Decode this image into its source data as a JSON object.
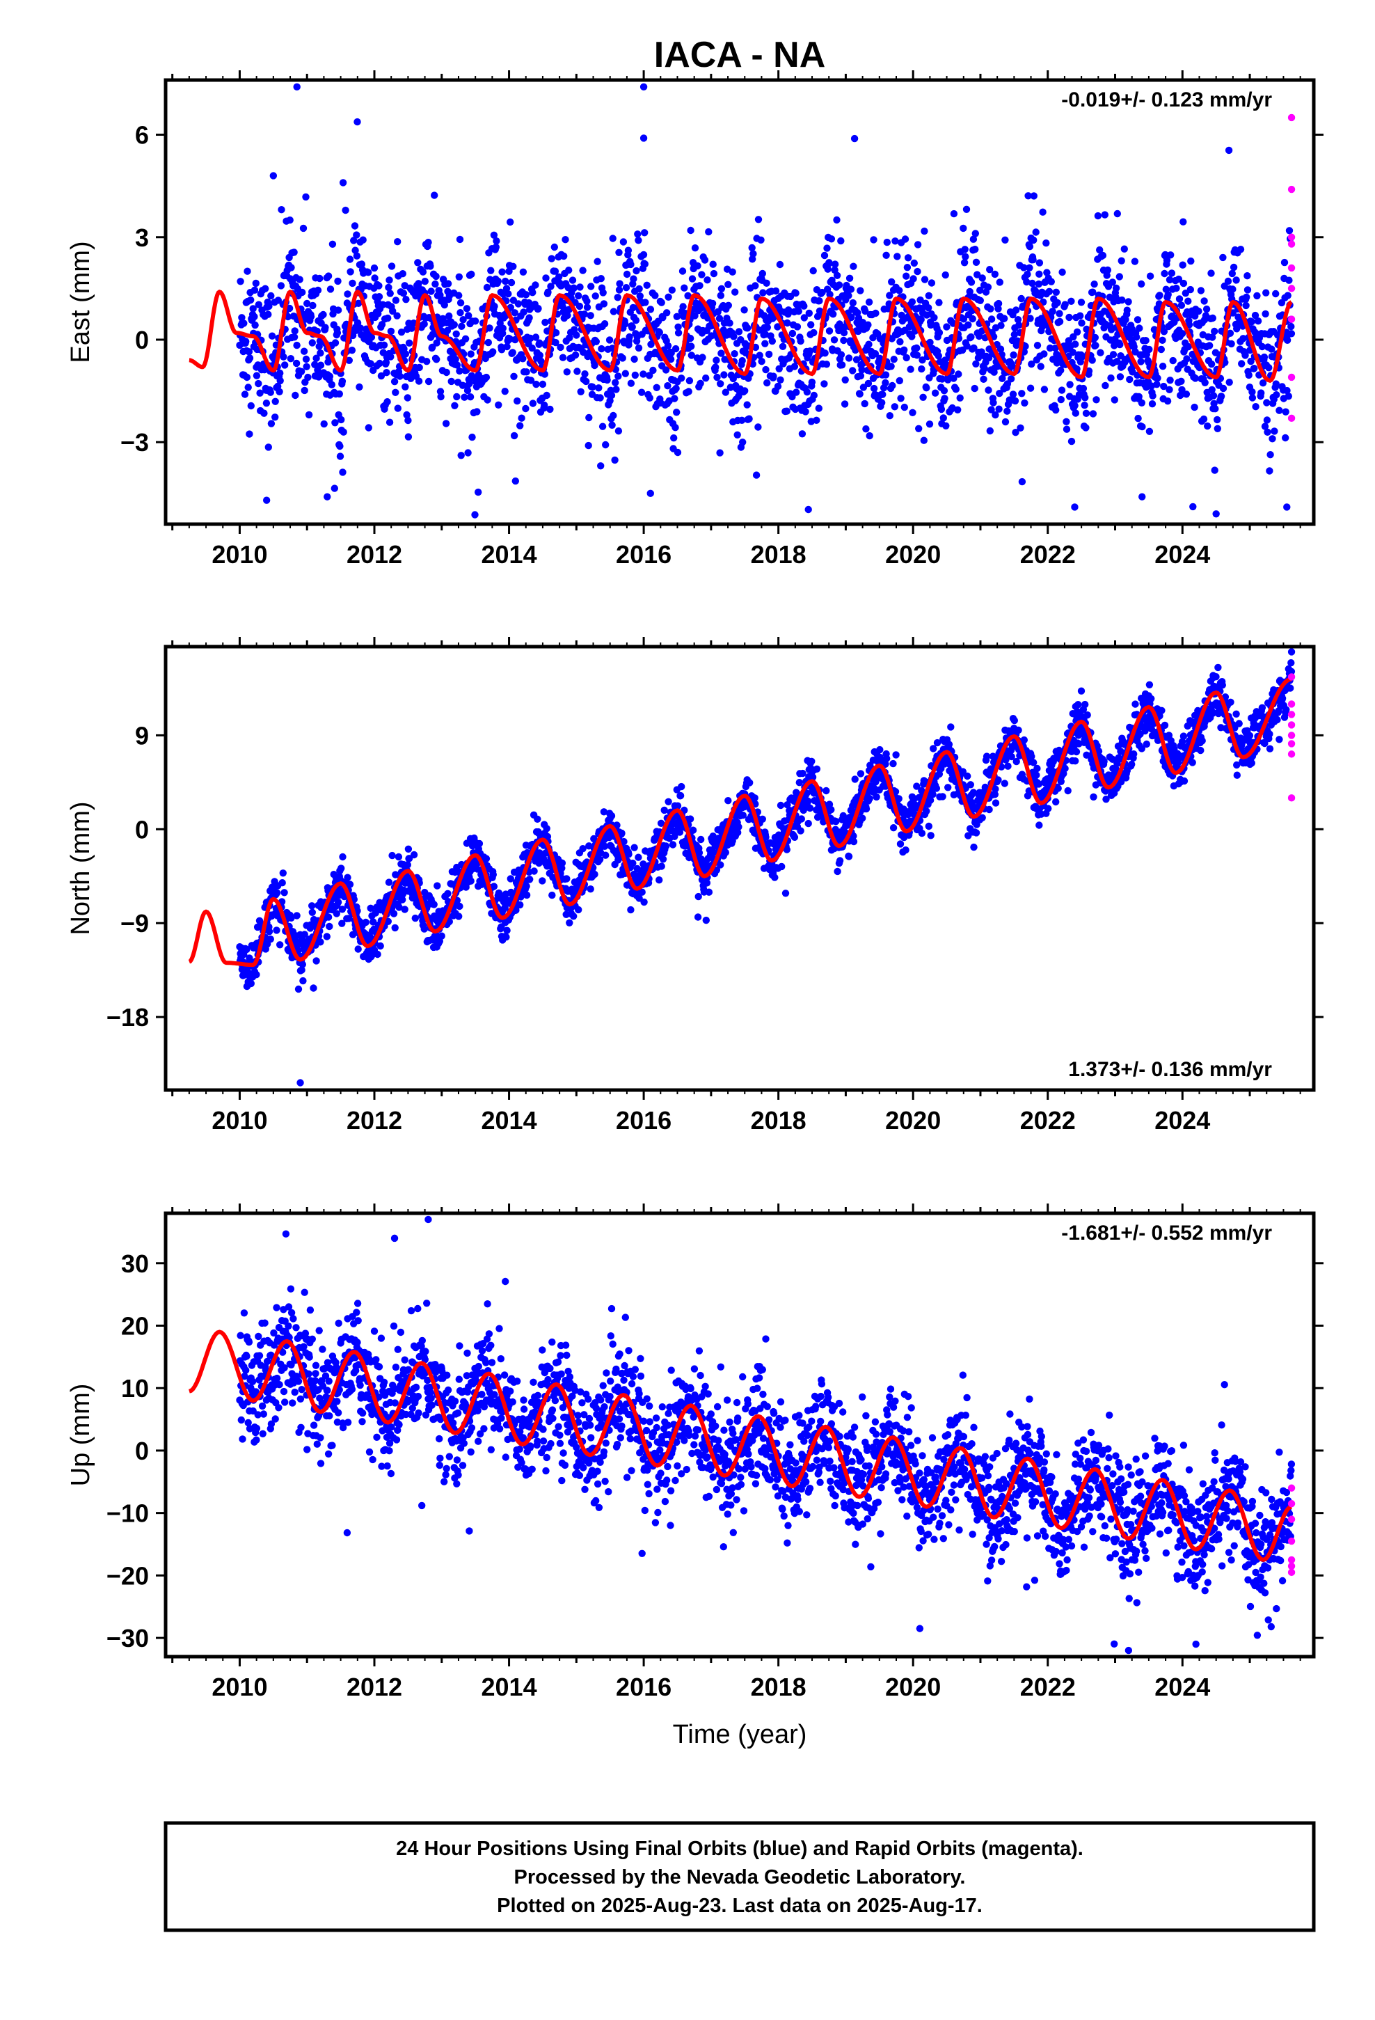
{
  "title": "IACA - NA",
  "xlabel": "Time (year)",
  "colors": {
    "final": "#0000ff",
    "rapid": "#ff00ff",
    "model": "#ff0000",
    "frame": "#000000"
  },
  "footer": {
    "line1": "24 Hour Positions Using Final Orbits (blue) and Rapid Orbits (magenta).",
    "line2": "Processed by the Nevada Geodetic Laboratory.",
    "line3": "Plotted on 2025-Aug-23. Last data on 2025-Aug-17."
  },
  "chart_data": [
    {
      "type": "scatter",
      "component": "east",
      "ylabel": "East (mm)",
      "rate_label": "-0.019+/- 0.123 mm/yr",
      "rate_position": "top-right",
      "xlim": [
        2008.9,
        2025.95
      ],
      "ylim": [
        -5.4,
        7.6
      ],
      "xticks": [
        2010,
        2012,
        2014,
        2016,
        2018,
        2020,
        2022,
        2024
      ],
      "yticks": [
        -3,
        0,
        3,
        6
      ],
      "data_start": 2010.0,
      "data_end": 2025.62,
      "model": {
        "name": "seasonal + linear fit",
        "rate": -0.019,
        "annual_amplitude": 0.9,
        "semiannual_amplitude": 0.45,
        "model_points": [
          [
            2009.25,
            -0.6
          ],
          [
            2009.45,
            -0.8
          ],
          [
            2009.7,
            1.4
          ],
          [
            2009.95,
            0.2
          ],
          [
            2010.2,
            0.1
          ],
          [
            2010.5,
            -0.9
          ],
          [
            2010.75,
            1.4
          ],
          [
            2011.0,
            0.2
          ],
          [
            2011.2,
            0.1
          ],
          [
            2011.5,
            -0.9
          ],
          [
            2011.75,
            1.4
          ],
          [
            2012.0,
            0.2
          ],
          [
            2012.2,
            0.1
          ],
          [
            2012.5,
            -0.9
          ],
          [
            2012.75,
            1.3
          ],
          [
            2013.0,
            0.1
          ],
          [
            2013.5,
            -0.9
          ],
          [
            2013.75,
            1.3
          ],
          [
            2014.5,
            -0.9
          ],
          [
            2014.75,
            1.3
          ],
          [
            2015.5,
            -0.9
          ],
          [
            2015.75,
            1.3
          ],
          [
            2016.5,
            -0.9
          ],
          [
            2016.75,
            1.3
          ],
          [
            2017.5,
            -1.0
          ],
          [
            2017.75,
            1.2
          ],
          [
            2018.5,
            -1.0
          ],
          [
            2018.75,
            1.2
          ],
          [
            2019.5,
            -1.0
          ],
          [
            2019.75,
            1.2
          ],
          [
            2020.5,
            -1.0
          ],
          [
            2020.75,
            1.2
          ],
          [
            2021.5,
            -1.0
          ],
          [
            2021.75,
            1.2
          ],
          [
            2022.5,
            -1.1
          ],
          [
            2022.75,
            1.2
          ],
          [
            2023.5,
            -1.1
          ],
          [
            2023.75,
            1.1
          ],
          [
            2024.5,
            -1.1
          ],
          [
            2024.75,
            1.1
          ],
          [
            2025.3,
            -1.2
          ],
          [
            2025.62,
            1.1
          ]
        ]
      },
      "rapid_points": [
        [
          2025.62,
          6.5
        ],
        [
          2025.62,
          4.4
        ],
        [
          2025.62,
          3.0
        ],
        [
          2025.62,
          2.8
        ],
        [
          2025.62,
          2.1
        ],
        [
          2025.62,
          1.5
        ],
        [
          2025.62,
          0.6
        ],
        [
          2025.62,
          -1.1
        ],
        [
          2025.62,
          -2.3
        ]
      ],
      "outliers": [
        [
          2010.85,
          7.4
        ],
        [
          2016.0,
          7.4
        ],
        [
          2016.0,
          5.9
        ],
        [
          2010.5,
          4.8
        ],
        [
          2010.4,
          -4.7
        ],
        [
          2011.3,
          -4.6
        ],
        [
          2016.1,
          -4.5
        ],
        [
          2023.4,
          -4.6
        ],
        [
          2024.5,
          -5.1
        ],
        [
          2022.4,
          -4.9
        ],
        [
          2025.55,
          -4.9
        ]
      ],
      "noise_sd": 1.1
    },
    {
      "type": "scatter",
      "component": "north",
      "ylabel": "North (mm)",
      "rate_label": "1.373+/- 0.136 mm/yr",
      "rate_position": "bottom-right",
      "xlim": [
        2008.9,
        2025.95
      ],
      "ylim": [
        -25,
        17.5
      ],
      "xticks": [
        2010,
        2012,
        2014,
        2016,
        2018,
        2020,
        2022,
        2024
      ],
      "yticks": [
        -18,
        -9,
        0,
        9
      ],
      "data_start": 2010.0,
      "data_end": 2025.62,
      "model": {
        "name": "seasonal + linear fit",
        "rate": 1.373,
        "annual_amplitude": 3.6,
        "semiannual_amplitude": 0.8,
        "model_points": [
          [
            2009.25,
            -12.7
          ],
          [
            2009.5,
            -7.9
          ],
          [
            2009.8,
            -12.8
          ],
          [
            2010.2,
            -13.0
          ],
          [
            2010.5,
            -6.7
          ],
          [
            2010.9,
            -12.5
          ],
          [
            2011.5,
            -5.2
          ],
          [
            2011.9,
            -11.2
          ],
          [
            2012.5,
            -4.0
          ],
          [
            2012.9,
            -9.8
          ],
          [
            2013.5,
            -2.5
          ],
          [
            2013.9,
            -8.5
          ],
          [
            2014.5,
            -1.0
          ],
          [
            2014.9,
            -7.2
          ],
          [
            2015.5,
            0.3
          ],
          [
            2015.9,
            -5.7
          ],
          [
            2016.5,
            1.8
          ],
          [
            2016.9,
            -4.5
          ],
          [
            2017.5,
            3.2
          ],
          [
            2017.9,
            -3.0
          ],
          [
            2018.5,
            4.6
          ],
          [
            2018.9,
            -1.6
          ],
          [
            2019.5,
            6.1
          ],
          [
            2019.9,
            -0.2
          ],
          [
            2020.5,
            7.4
          ],
          [
            2020.9,
            1.2
          ],
          [
            2021.5,
            8.9
          ],
          [
            2021.9,
            2.5
          ],
          [
            2022.5,
            10.3
          ],
          [
            2022.9,
            4.0
          ],
          [
            2023.5,
            11.7
          ],
          [
            2023.9,
            5.4
          ],
          [
            2024.5,
            13.1
          ],
          [
            2024.9,
            6.9
          ],
          [
            2025.62,
            14.4
          ]
        ]
      },
      "rapid_points": [
        [
          2025.62,
          14.6
        ],
        [
          2025.62,
          12.0
        ],
        [
          2025.62,
          11.0
        ],
        [
          2025.62,
          10.0
        ],
        [
          2025.62,
          9.0
        ],
        [
          2025.62,
          8.2
        ],
        [
          2025.62,
          7.2
        ],
        [
          2025.62,
          3.0
        ]
      ],
      "outliers": [
        [
          2010.9,
          -24.3
        ],
        [
          2025.62,
          17.0
        ]
      ],
      "noise_sd": 1.2
    },
    {
      "type": "scatter",
      "component": "up",
      "ylabel": "Up (mm)",
      "rate_label": "-1.681+/- 0.552 mm/yr",
      "rate_position": "top-right",
      "xlim": [
        2008.9,
        2025.95
      ],
      "ylim": [
        -33,
        38
      ],
      "xticks": [
        2010,
        2012,
        2014,
        2016,
        2018,
        2020,
        2022,
        2024
      ],
      "yticks": [
        -30,
        -20,
        -10,
        0,
        10,
        20,
        30
      ],
      "data_start": 2010.0,
      "data_end": 2025.62,
      "model": {
        "name": "seasonal + linear fit",
        "rate": -1.681,
        "annual_amplitude": 5.0,
        "semiannual_amplitude": 0.6,
        "model_points": [
          [
            2009.25,
            9.5
          ],
          [
            2009.7,
            19.0
          ],
          [
            2010.2,
            8.0
          ],
          [
            2010.7,
            17.5
          ],
          [
            2011.2,
            6.2
          ],
          [
            2011.7,
            15.8
          ],
          [
            2012.2,
            4.5
          ],
          [
            2012.7,
            14.0
          ],
          [
            2013.2,
            2.8
          ],
          [
            2013.7,
            12.3
          ],
          [
            2014.2,
            1.0
          ],
          [
            2014.7,
            10.6
          ],
          [
            2015.2,
            -0.7
          ],
          [
            2015.7,
            8.9
          ],
          [
            2016.2,
            -2.4
          ],
          [
            2016.7,
            7.2
          ],
          [
            2017.2,
            -4.0
          ],
          [
            2017.7,
            5.5
          ],
          [
            2018.2,
            -5.7
          ],
          [
            2018.7,
            3.8
          ],
          [
            2019.2,
            -7.4
          ],
          [
            2019.7,
            2.1
          ],
          [
            2020.2,
            -9.0
          ],
          [
            2020.7,
            0.4
          ],
          [
            2021.2,
            -10.7
          ],
          [
            2021.7,
            -1.3
          ],
          [
            2022.2,
            -12.4
          ],
          [
            2022.7,
            -3.0
          ],
          [
            2023.2,
            -14.1
          ],
          [
            2023.7,
            -4.7
          ],
          [
            2024.2,
            -15.8
          ],
          [
            2024.7,
            -6.4
          ],
          [
            2025.2,
            -17.5
          ],
          [
            2025.62,
            -9.0
          ]
        ]
      },
      "rapid_points": [
        [
          2025.62,
          -6.0
        ],
        [
          2025.62,
          -8.5
        ],
        [
          2025.62,
          -11.0
        ],
        [
          2025.62,
          -14.5
        ],
        [
          2025.62,
          -17.5
        ],
        [
          2025.62,
          -18.5
        ],
        [
          2025.62,
          -19.5
        ]
      ],
      "outliers": [
        [
          2012.8,
          37.0
        ],
        [
          2012.3,
          34.0
        ],
        [
          2023.2,
          -32.0
        ],
        [
          2024.2,
          -31.0
        ],
        [
          2020.1,
          -28.5
        ]
      ],
      "noise_sd": 4.5
    }
  ]
}
